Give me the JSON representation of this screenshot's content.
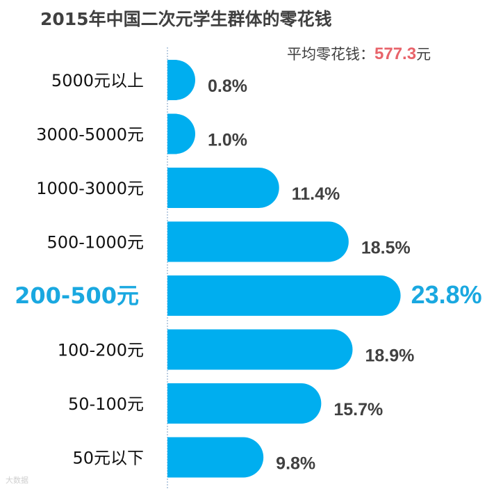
{
  "title": "2015年中国二次元学生群体的零花钱",
  "avg_label": "平均零花钱：",
  "avg_value": "577.3",
  "avg_unit": "元",
  "watermark": "大数据",
  "colors": {
    "bar": "#00aeef",
    "highlight_label": "#1aa8e0",
    "text": "#404040",
    "axis": "#7a9cc6"
  },
  "chart_data": {
    "type": "bar",
    "orientation": "horizontal",
    "title": "2015年中国二次元学生群体的零花钱",
    "categories": [
      "5000元以上",
      "3000-5000元",
      "1000-3000元",
      "500-1000元",
      "200-500元",
      "100-200元",
      "50-100元",
      "50元以下"
    ],
    "values": [
      0.8,
      1.0,
      11.4,
      18.5,
      23.8,
      18.9,
      15.7,
      9.8
    ],
    "value_labels": [
      "0.8%",
      "1.0%",
      "11.4%",
      "18.5%",
      "23.8%",
      "18.9%",
      "15.7%",
      "9.8%"
    ],
    "highlight_index": 4,
    "unit": "%",
    "grid": false,
    "legend": "none"
  }
}
